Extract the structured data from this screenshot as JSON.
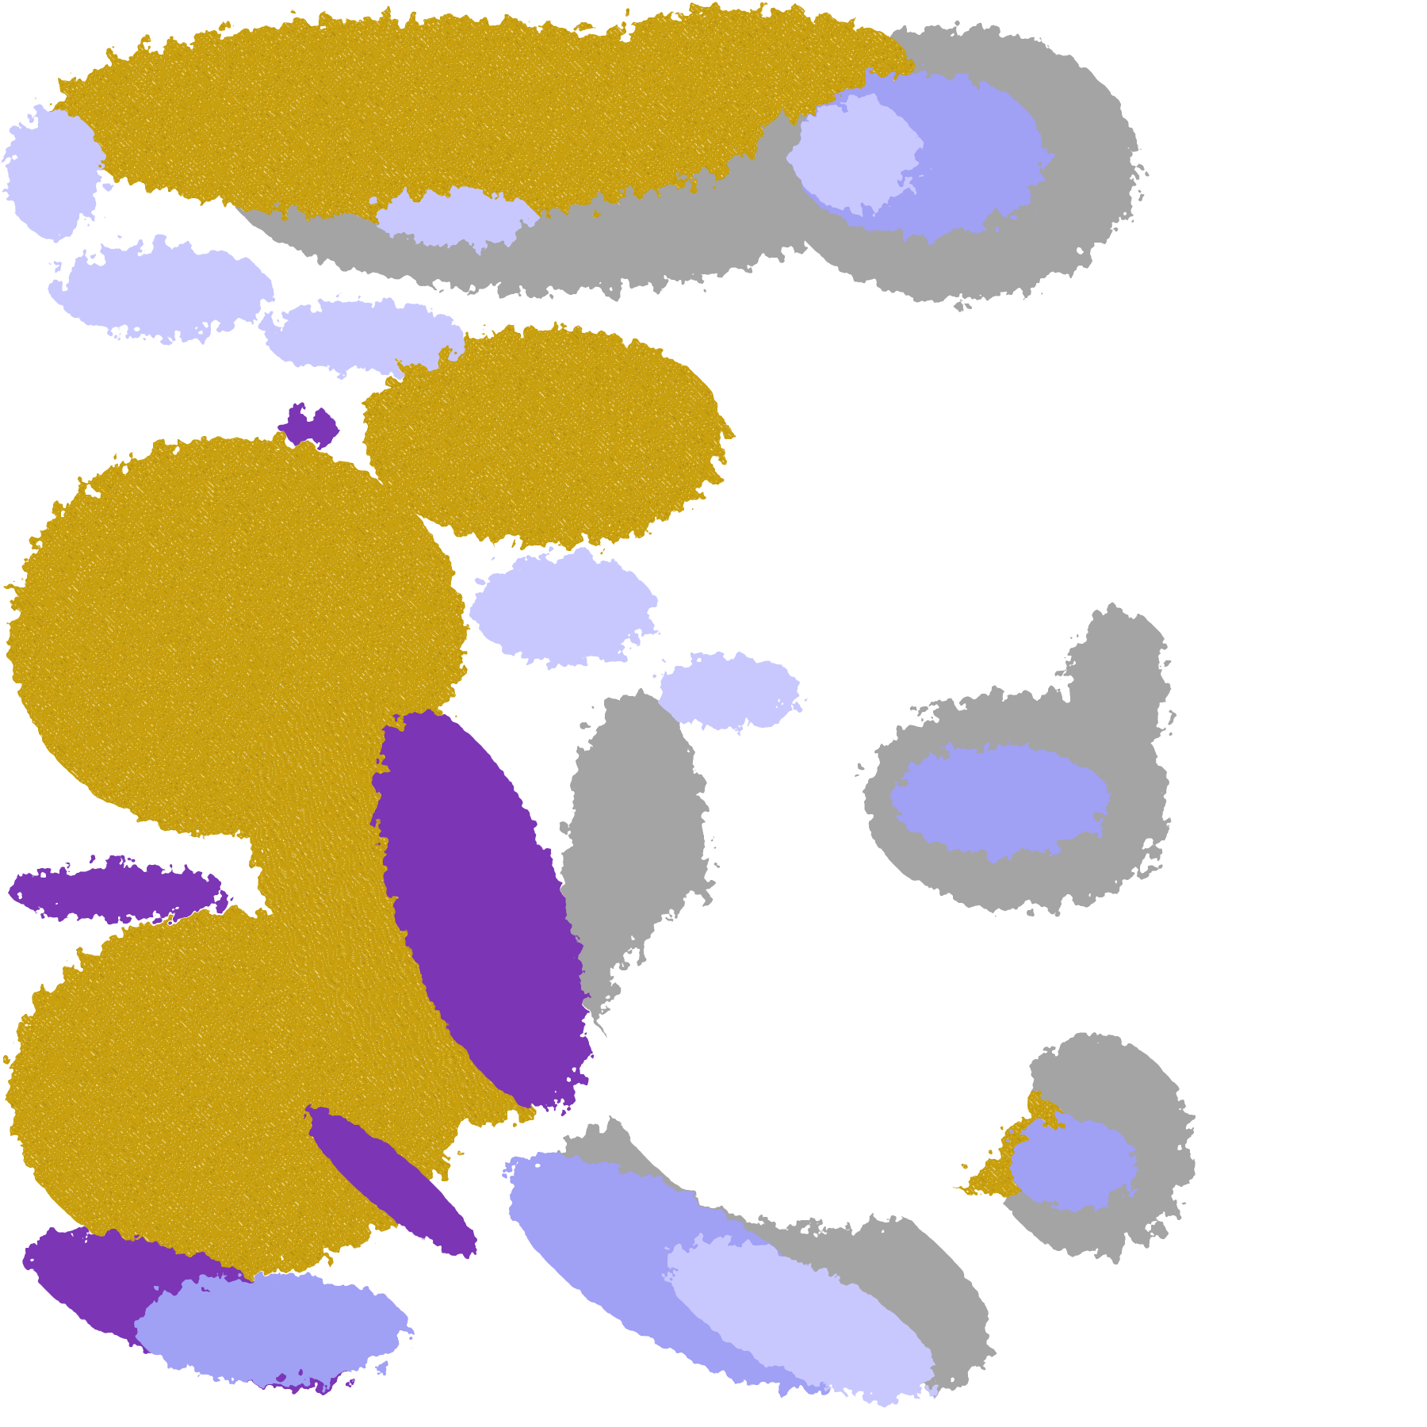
{
  "map": {
    "type": "classified-raster",
    "background": "#ffffff",
    "palette": {
      "gold": "#c9a00a",
      "purple": "#7b35b5",
      "magenta": "#c050d0",
      "lavender": "#c8c8ff",
      "periwinkle": "#a0a0f5",
      "gray": "#a4a4a4",
      "dark-gray": "#8c8c8c",
      "white": "#ffffff"
    }
  }
}
